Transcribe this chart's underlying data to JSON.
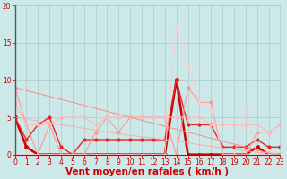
{
  "title": "",
  "xlabel": "Vent moyen/en rafales ( km/h )",
  "ylabel": "",
  "background_color": "#cce8e8",
  "grid_color": "#aacccc",
  "x": [
    0,
    1,
    2,
    3,
    4,
    5,
    6,
    7,
    8,
    9,
    10,
    11,
    12,
    13,
    14,
    15,
    16,
    17,
    18,
    19,
    20,
    21,
    22,
    23
  ],
  "series": [
    {
      "name": "dark_red_thick",
      "color": "#cc0000",
      "lw": 1.8,
      "marker": "o",
      "markersize": 2.5,
      "y": [
        5,
        1,
        0,
        0,
        0,
        0,
        0,
        0,
        0,
        0,
        0,
        0,
        0,
        0,
        10,
        0,
        0,
        0,
        0,
        0,
        0,
        1,
        0,
        0
      ]
    },
    {
      "name": "medium_red",
      "color": "#ee2222",
      "lw": 1.0,
      "marker": "o",
      "markersize": 2,
      "y": [
        5,
        2,
        4,
        5,
        1,
        0,
        2,
        2,
        2,
        2,
        2,
        2,
        2,
        2,
        10,
        4,
        4,
        4,
        1,
        1,
        1,
        2,
        1,
        1
      ]
    },
    {
      "name": "light_red_high",
      "color": "#ff9999",
      "lw": 0.8,
      "marker": "o",
      "markersize": 2,
      "y": [
        9,
        4,
        0,
        4,
        0,
        0,
        0,
        3,
        5,
        3,
        5,
        5,
        5,
        5,
        0,
        9,
        7,
        7,
        0,
        0,
        0,
        3,
        3,
        4
      ]
    },
    {
      "name": "light_pink_flat",
      "color": "#ffbbbb",
      "lw": 0.8,
      "marker": "o",
      "markersize": 2,
      "y": [
        7,
        4,
        4,
        4,
        5,
        5,
        5,
        4,
        5,
        5,
        5,
        5,
        5,
        5,
        5,
        5,
        5,
        4,
        4,
        4,
        4,
        4,
        3,
        4
      ]
    },
    {
      "name": "lightest_pink_spike",
      "color": "#ffcccc",
      "lw": 0.7,
      "marker": "o",
      "markersize": 1.8,
      "y": [
        0,
        0,
        0,
        0,
        0,
        0,
        0,
        0,
        0,
        0,
        0,
        0,
        0,
        0,
        17,
        12,
        7,
        6,
        0,
        0,
        6,
        0,
        0,
        0
      ]
    },
    {
      "name": "trend_upper",
      "color": "#ff8888",
      "lw": 0.7,
      "marker": null,
      "markersize": 0,
      "y": [
        9.0,
        8.6,
        8.2,
        7.8,
        7.4,
        7.0,
        6.6,
        6.2,
        5.8,
        5.4,
        5.0,
        4.6,
        4.2,
        3.8,
        3.4,
        3.0,
        2.6,
        2.2,
        1.8,
        1.4,
        1.0,
        0.6,
        0.2,
        0.0
      ]
    },
    {
      "name": "trend_lower",
      "color": "#ffaaaa",
      "lw": 0.7,
      "marker": null,
      "markersize": 0,
      "y": [
        5.0,
        4.8,
        4.5,
        4.3,
        4.0,
        3.8,
        3.5,
        3.3,
        3.0,
        2.8,
        2.6,
        2.4,
        2.2,
        2.0,
        1.8,
        1.6,
        1.3,
        1.1,
        0.9,
        0.7,
        0.5,
        0.3,
        0.2,
        0.1
      ]
    }
  ],
  "ylim": [
    0,
    20
  ],
  "xlim": [
    0,
    23
  ],
  "yticks": [
    0,
    5,
    10,
    15,
    20
  ],
  "xticks": [
    0,
    1,
    2,
    3,
    4,
    5,
    6,
    7,
    8,
    9,
    10,
    11,
    12,
    13,
    14,
    15,
    16,
    17,
    18,
    19,
    20,
    21,
    22,
    23
  ],
  "tick_color": "#cc0000",
  "label_color": "#cc0000",
  "tick_fontsize": 5.5,
  "xlabel_fontsize": 7.5
}
